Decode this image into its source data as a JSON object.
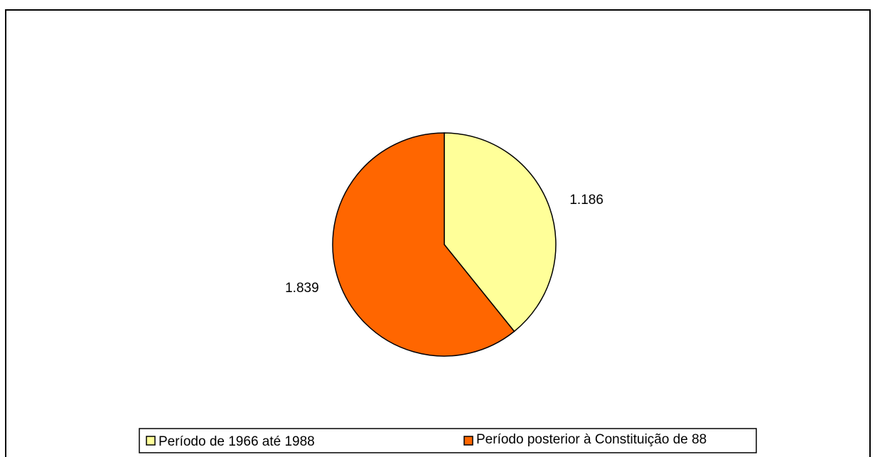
{
  "chart_data": {
    "type": "pie",
    "categories": [
      "Período de 1966 até 1988",
      "Período posterior à Constituição de 88"
    ],
    "values": [
      1186,
      1839
    ],
    "value_labels": [
      "1.186",
      "1.839"
    ],
    "colors": [
      "#ffff99",
      "#ff6600"
    ],
    "legend": "bottom"
  }
}
